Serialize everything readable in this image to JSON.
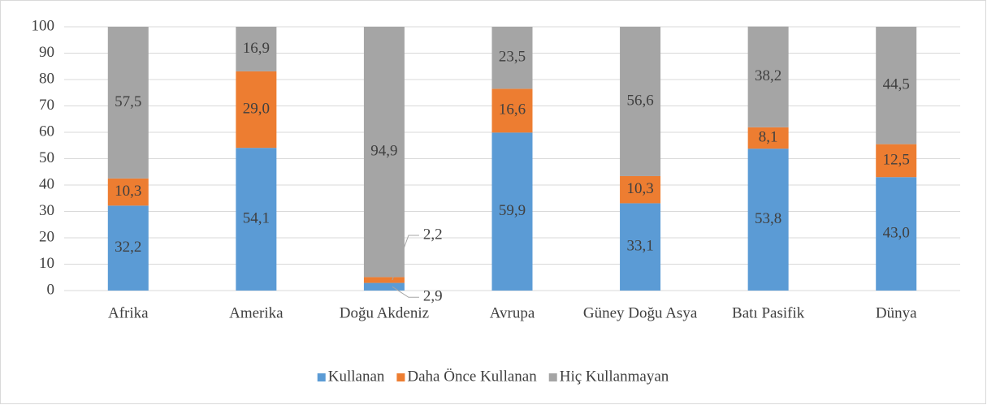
{
  "chart_data": {
    "type": "stacked_bar",
    "categories": [
      "Afrika",
      "Amerika",
      "Doğu Akdeniz",
      "Avrupa",
      "Güney Doğu Asya",
      "Batı Pasifik",
      "Dünya"
    ],
    "series": [
      {
        "name": "Kullanan",
        "color": "#5b9bd5",
        "values": [
          32.2,
          54.1,
          2.9,
          59.9,
          33.1,
          53.8,
          43.0
        ],
        "value_labels": [
          "32,2",
          "54,1",
          "2,9",
          "59,9",
          "33,1",
          "53,8",
          "43,0"
        ]
      },
      {
        "name": "Daha Önce Kullanan",
        "color": "#ed7d31",
        "values": [
          10.3,
          29.0,
          2.2,
          16.6,
          10.3,
          8.1,
          12.5
        ],
        "value_labels": [
          "10,3",
          "29,0",
          "2,2",
          "16,6",
          "10,3",
          "8,1",
          "12,5"
        ]
      },
      {
        "name": "Hiç Kullanmayan",
        "color": "#a5a5a5",
        "values": [
          57.5,
          16.9,
          94.9,
          23.5,
          56.6,
          38.2,
          44.5
        ],
        "value_labels": [
          "57,5",
          "16,9",
          "94,9",
          "23,5",
          "56,6",
          "38,2",
          "44,5"
        ]
      }
    ],
    "ylim": [
      0,
      100
    ],
    "yticks": [
      0,
      10,
      20,
      30,
      40,
      50,
      60,
      70,
      80,
      90,
      100
    ],
    "grid": true,
    "legend": "bottom"
  }
}
